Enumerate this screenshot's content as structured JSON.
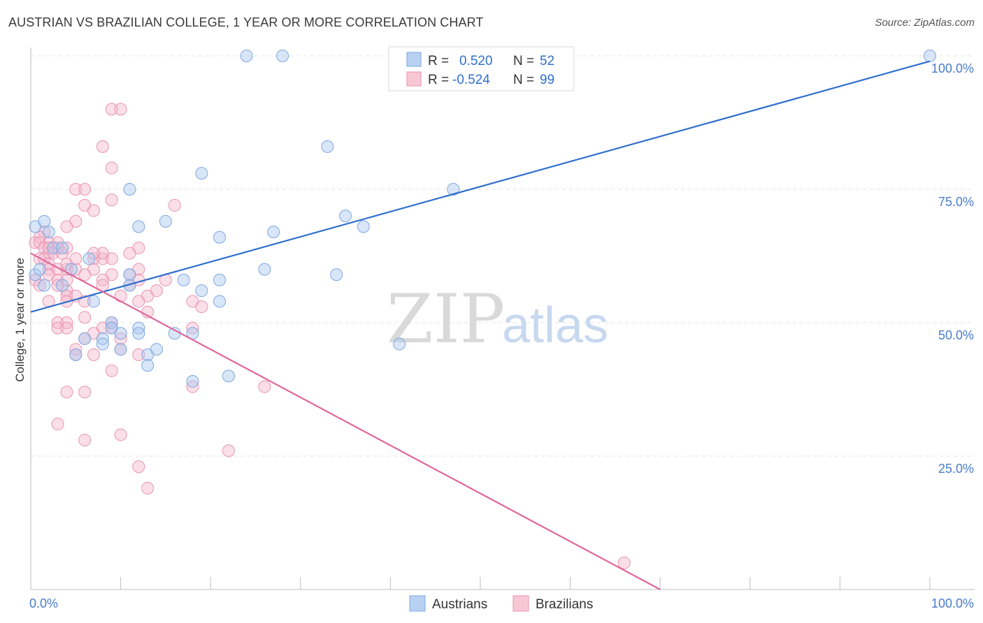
{
  "title": "AUSTRIAN VS BRAZILIAN COLLEGE, 1 YEAR OR MORE CORRELATION CHART",
  "source": "Source: ZipAtlas.com",
  "watermark": {
    "zip": "ZIP",
    "atlas": "atlas"
  },
  "legend": {
    "austrians": {
      "r_label": "R =",
      "r_value": "0.520",
      "n_label": "N =",
      "n_value": "52"
    },
    "brazilians": {
      "r_label": "R =",
      "r_value": "-0.524",
      "n_label": "N =",
      "n_value": "99"
    }
  },
  "chart_data": {
    "type": "scatter",
    "title": "AUSTRIAN VS BRAZILIAN COLLEGE, 1 YEAR OR MORE CORRELATION CHART",
    "xlabel": "",
    "ylabel": "College, 1 year or more",
    "xlim": [
      0,
      100
    ],
    "ylim": [
      0,
      100
    ],
    "x_tick_labels": [
      "0.0%",
      "100.0%"
    ],
    "y_tick_labels": [
      "25.0%",
      "50.0%",
      "75.0%",
      "100.0%"
    ],
    "y_ticks": [
      25,
      50,
      75,
      100
    ],
    "grid": true,
    "legend_position": "top-center",
    "colors": {
      "austrians": "#a9c8f0",
      "austrians_line": "#2f6fce",
      "brazilians": "#f5b8cb",
      "brazilians_line": "#e0679a"
    },
    "series": [
      {
        "name": "Austrians",
        "trend": [
          [
            0,
            52
          ],
          [
            100,
            99
          ]
        ],
        "points": [
          [
            24,
            100
          ],
          [
            28,
            100
          ],
          [
            100,
            100
          ],
          [
            52,
            95
          ],
          [
            33,
            83
          ],
          [
            19,
            78
          ],
          [
            11,
            75
          ],
          [
            47,
            75
          ],
          [
            0.5,
            68
          ],
          [
            1.5,
            69
          ],
          [
            2,
            67
          ],
          [
            12,
            68
          ],
          [
            15,
            69
          ],
          [
            21,
            66
          ],
          [
            27,
            67
          ],
          [
            35,
            70
          ],
          [
            37,
            68
          ],
          [
            2.5,
            64
          ],
          [
            3.5,
            64
          ],
          [
            4.5,
            60
          ],
          [
            6.5,
            62
          ],
          [
            11,
            59
          ],
          [
            17,
            58
          ],
          [
            21,
            58
          ],
          [
            26,
            60
          ],
          [
            34,
            59
          ],
          [
            1.5,
            57
          ],
          [
            3.5,
            57
          ],
          [
            11,
            57
          ],
          [
            19,
            56
          ],
          [
            7,
            54
          ],
          [
            21,
            54
          ],
          [
            9,
            50
          ],
          [
            12,
            49
          ],
          [
            16,
            48
          ],
          [
            18,
            48
          ],
          [
            9,
            49
          ],
          [
            10,
            48
          ],
          [
            12,
            48
          ],
          [
            6,
            47
          ],
          [
            8,
            47
          ],
          [
            8,
            46
          ],
          [
            5,
            44
          ],
          [
            13,
            44
          ],
          [
            14,
            45
          ],
          [
            13,
            42
          ],
          [
            18,
            39
          ],
          [
            22,
            40
          ],
          [
            41,
            46
          ],
          [
            0.5,
            59
          ],
          [
            1,
            60
          ],
          [
            10,
            45
          ]
        ]
      },
      {
        "name": "Brazilians",
        "trend": [
          [
            0,
            63
          ],
          [
            70,
            0
          ]
        ],
        "points": [
          [
            9,
            90
          ],
          [
            10,
            90
          ],
          [
            8,
            83
          ],
          [
            9,
            79
          ],
          [
            5,
            75
          ],
          [
            6,
            75
          ],
          [
            9,
            73
          ],
          [
            16,
            72
          ],
          [
            6,
            72
          ],
          [
            7,
            71
          ],
          [
            5,
            69
          ],
          [
            4,
            68
          ],
          [
            1.5,
            67
          ],
          [
            1,
            66
          ],
          [
            0.5,
            65
          ],
          [
            1,
            65
          ],
          [
            2,
            65
          ],
          [
            3,
            64
          ],
          [
            1.5,
            64
          ],
          [
            2,
            63
          ],
          [
            2.5,
            63
          ],
          [
            3.5,
            63
          ],
          [
            1,
            62
          ],
          [
            1.5,
            62
          ],
          [
            2,
            61
          ],
          [
            4,
            64
          ],
          [
            12,
            64
          ],
          [
            7,
            62
          ],
          [
            8,
            62
          ],
          [
            9,
            62
          ],
          [
            8,
            63
          ],
          [
            11,
            63
          ],
          [
            2,
            60
          ],
          [
            3,
            60
          ],
          [
            4,
            60
          ],
          [
            5,
            60
          ],
          [
            12,
            60
          ],
          [
            7,
            60
          ],
          [
            9,
            59
          ],
          [
            11,
            59
          ],
          [
            2,
            59
          ],
          [
            3,
            58
          ],
          [
            4,
            58
          ],
          [
            8,
            58
          ],
          [
            12,
            58
          ],
          [
            15,
            58
          ],
          [
            3,
            57
          ],
          [
            4,
            56
          ],
          [
            11,
            57
          ],
          [
            10,
            55
          ],
          [
            13,
            55
          ],
          [
            4,
            55
          ],
          [
            5,
            55
          ],
          [
            4,
            54
          ],
          [
            2,
            54
          ],
          [
            6,
            54
          ],
          [
            12,
            54
          ],
          [
            18,
            54
          ],
          [
            19,
            53
          ],
          [
            13,
            52
          ],
          [
            6,
            51
          ],
          [
            3,
            50
          ],
          [
            4,
            50
          ],
          [
            9,
            50
          ],
          [
            3,
            49
          ],
          [
            4,
            49
          ],
          [
            8,
            49
          ],
          [
            9,
            49
          ],
          [
            18,
            49
          ],
          [
            7,
            48
          ],
          [
            10,
            47
          ],
          [
            6,
            47
          ],
          [
            5,
            45
          ],
          [
            10,
            45
          ],
          [
            5,
            44
          ],
          [
            7,
            44
          ],
          [
            12,
            44
          ],
          [
            9,
            41
          ],
          [
            18,
            38
          ],
          [
            26,
            38
          ],
          [
            6,
            37
          ],
          [
            4,
            37
          ],
          [
            3,
            31
          ],
          [
            10,
            29
          ],
          [
            6,
            28
          ],
          [
            22,
            26
          ],
          [
            12,
            23
          ],
          [
            13,
            19
          ],
          [
            66,
            5
          ],
          [
            0.5,
            58
          ],
          [
            1,
            57
          ],
          [
            2,
            64
          ],
          [
            3,
            65
          ],
          [
            4,
            61
          ],
          [
            5,
            62
          ],
          [
            6,
            59
          ],
          [
            7,
            63
          ],
          [
            8,
            57
          ],
          [
            14,
            56
          ]
        ]
      }
    ]
  },
  "bottom_legend": {
    "austrians": "Austrians",
    "brazilians": "Brazilians"
  }
}
